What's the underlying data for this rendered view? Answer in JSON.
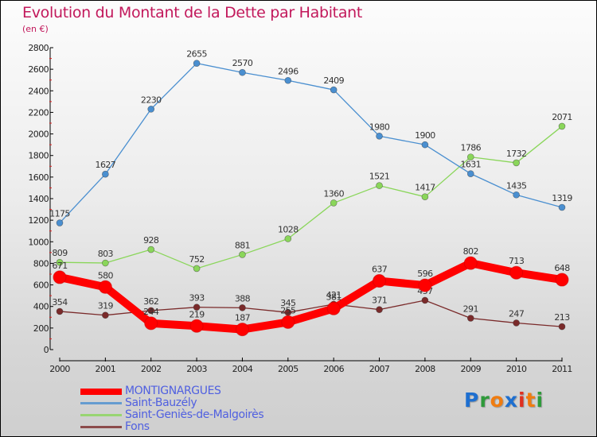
{
  "chart_data": {
    "type": "line",
    "title": "Evolution du Montant de la Dette par Habitant",
    "subtitle": "(en €)",
    "xlabel": "",
    "ylabel": "",
    "x": [
      "2000",
      "2001",
      "2002",
      "2003",
      "2004",
      "2005",
      "2006",
      "2007",
      "2008",
      "2009",
      "2010",
      "2011"
    ],
    "ylim": [
      0,
      2800
    ],
    "yticks": [
      0,
      200,
      400,
      600,
      800,
      1000,
      1200,
      1400,
      1600,
      1800,
      2000,
      2200,
      2400,
      2600,
      2800
    ],
    "grid": false,
    "legend_position": "bottom-left",
    "series": [
      {
        "name": "MONTIGNARGUES",
        "color": "#ff0000",
        "values": [
          671,
          580,
          244,
          219,
          187,
          255,
          381,
          637,
          596,
          802,
          713,
          648
        ]
      },
      {
        "name": "Saint-Bauzély",
        "color": "#4a8fd0",
        "values": [
          1175,
          1627,
          2230,
          2655,
          2570,
          2496,
          2409,
          1980,
          1900,
          1631,
          1435,
          1319
        ]
      },
      {
        "name": "Saint-Geniès-de-Malgoirès",
        "color": "#8ad65a",
        "values": [
          809,
          803,
          928,
          752,
          881,
          1028,
          1360,
          1521,
          1417,
          1786,
          1732,
          2071
        ]
      },
      {
        "name": "Fons",
        "color": "#7a2a2a",
        "values": [
          354,
          319,
          362,
          393,
          388,
          345,
          421,
          371,
          457,
          291,
          247,
          213
        ]
      }
    ]
  },
  "logo": {
    "letters": [
      "P",
      "r",
      "o",
      "x",
      "i",
      "t",
      "i"
    ],
    "colors": [
      "#1e6fd0",
      "#2e9a3a",
      "#f07c10",
      "#1e6fd0",
      "#e03020",
      "#f07c10",
      "#2e9a3a"
    ]
  }
}
